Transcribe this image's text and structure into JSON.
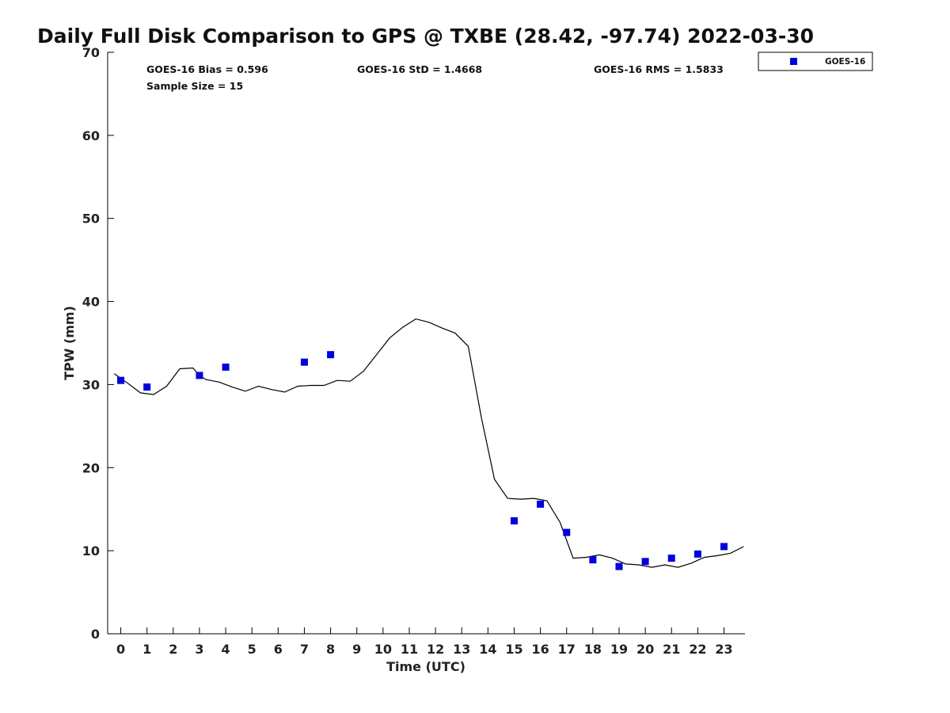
{
  "chart_data": {
    "type": "scatter",
    "title": "Daily Full Disk Comparison to GPS @ TXBE (28.42, -97.74) 2022-03-30",
    "xlabel": "Time (UTC)",
    "ylabel": "TPW (mm)",
    "xlim": [
      -0.5,
      23.8
    ],
    "ylim": [
      0,
      70
    ],
    "x_ticks": [
      "0",
      "1",
      "2",
      "3",
      "4",
      "5",
      "6",
      "7",
      "8",
      "9",
      "10",
      "11",
      "12",
      "13",
      "14",
      "15",
      "16",
      "17",
      "18",
      "19",
      "20",
      "21",
      "22",
      "23"
    ],
    "y_ticks": [
      "0",
      "10",
      "20",
      "30",
      "40",
      "50",
      "60",
      "70"
    ],
    "grid": false,
    "legend_position": "top-right",
    "colors": {
      "goes16": "#0000dd",
      "gps_line": "#000000"
    },
    "stats": {
      "bias": "GOES-16 Bias = 0.596",
      "std": "GOES-16 StD = 1.4668",
      "rms": "GOES-16 RMS = 1.5833",
      "sample": "Sample Size = 15"
    },
    "series": [
      {
        "name": "GOES-16",
        "marker": "square",
        "x": [
          0,
          1,
          3,
          4,
          7,
          8,
          15,
          16,
          17,
          18,
          19,
          20,
          21,
          22,
          23
        ],
        "y": [
          30.5,
          29.7,
          31.1,
          32.1,
          32.7,
          33.6,
          13.6,
          15.6,
          12.2,
          8.9,
          8.1,
          8.7,
          9.1,
          9.6,
          10.5
        ]
      },
      {
        "line": true,
        "x": [
          -0.25,
          0.25,
          0.75,
          1.25,
          1.75,
          2.25,
          2.75,
          3.0,
          3.25,
          3.75,
          4.25,
          4.75,
          5.25,
          5.75,
          6.25,
          6.75,
          7.25,
          7.75,
          8.25,
          8.75,
          9.25,
          9.75,
          10.25,
          10.75,
          11.25,
          11.75,
          12.25,
          12.75,
          13.25,
          13.75,
          14.25,
          14.75,
          15.25,
          15.75,
          16.25,
          16.75,
          17.25,
          17.75,
          18.25,
          18.75,
          19.25,
          19.75,
          20.25,
          20.75,
          21.25,
          21.75,
          22.25,
          22.75,
          23.25,
          23.75
        ],
        "y": [
          31.3,
          30.2,
          29.0,
          28.8,
          29.8,
          31.9,
          32.0,
          31.1,
          30.6,
          30.3,
          29.7,
          29.2,
          29.8,
          29.4,
          29.1,
          29.8,
          29.9,
          29.9,
          30.5,
          30.4,
          31.6,
          33.6,
          35.6,
          36.9,
          37.9,
          37.5,
          36.8,
          36.2,
          34.6,
          26.0,
          18.6,
          16.3,
          16.2,
          16.3,
          16.0,
          13.4,
          9.1,
          9.2,
          9.5,
          9.1,
          8.4,
          8.3,
          8.0,
          8.3,
          8.0,
          8.5,
          9.2,
          9.4,
          9.7,
          10.5
        ]
      }
    ]
  }
}
